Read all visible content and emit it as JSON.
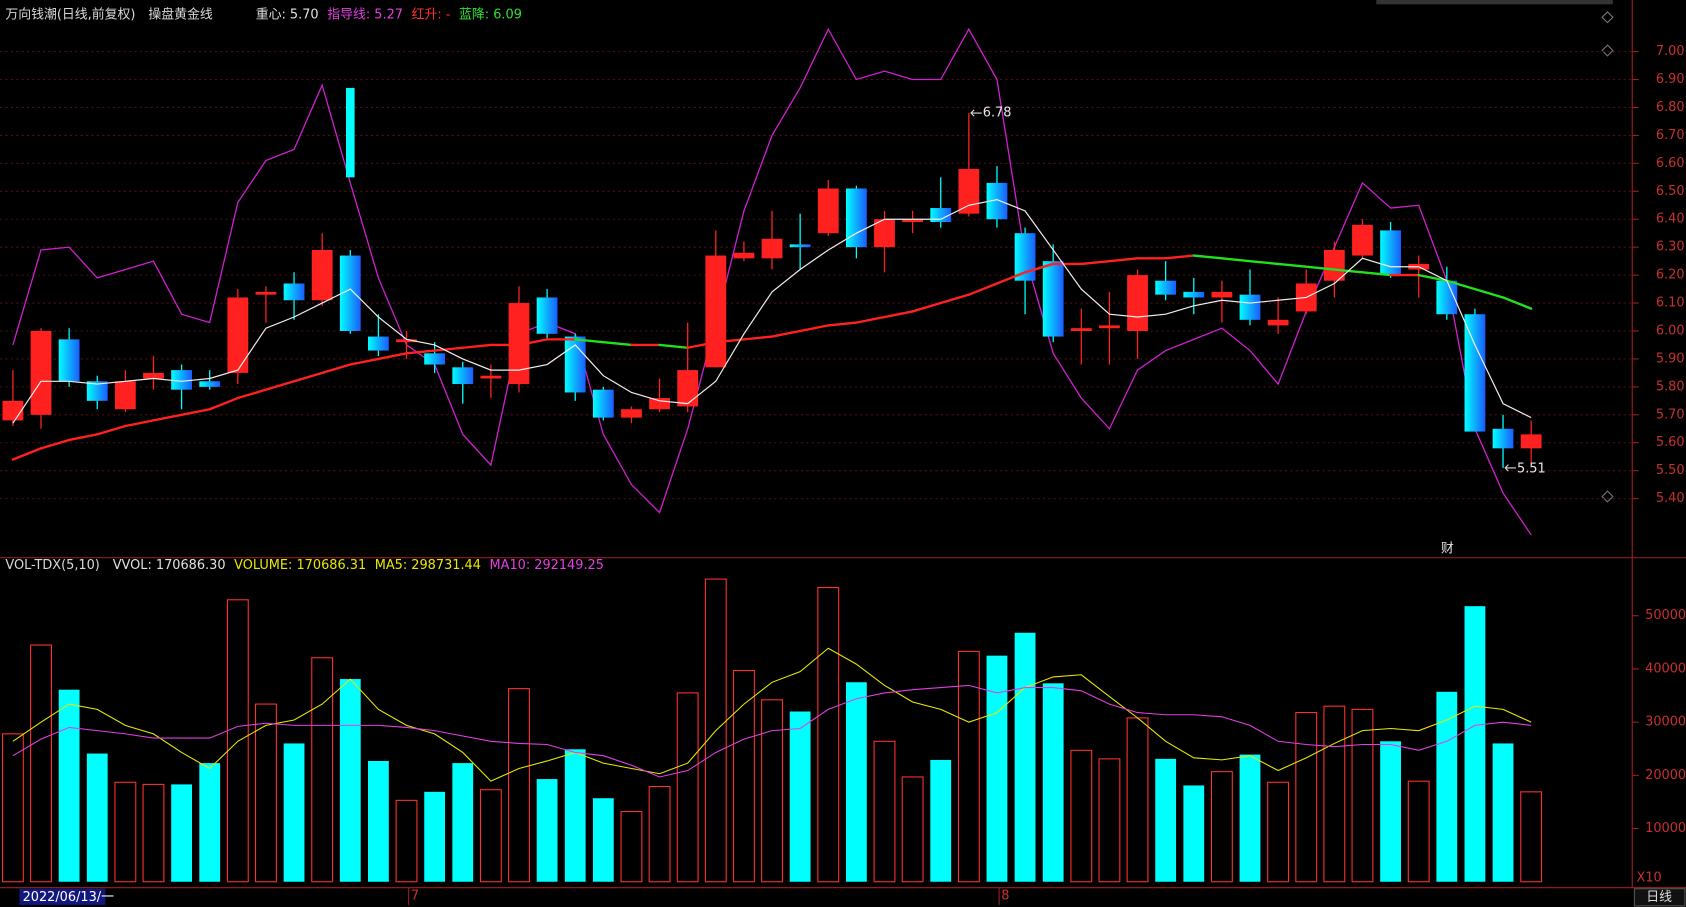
{
  "chart_data": [
    {
      "type": "candlestick",
      "title": "万向钱潮(日线,前复权)",
      "readouts": [
        {
          "text": "操盘黄金线",
          "color": "#d8d8d8"
        },
        {
          "text": "重心: 5.70",
          "color": "#e0e0e0"
        },
        {
          "text": "指导线: 5.27",
          "color": "#e040e0"
        },
        {
          "text": "红升: -",
          "color": "#ff3030"
        },
        {
          "text": "蓝降: 6.09",
          "color": "#30e030"
        }
      ],
      "categories": [
        "2022/06/13/一",
        null,
        null,
        null,
        null,
        null,
        null,
        null,
        null,
        null,
        null,
        null,
        null,
        null,
        "7",
        null,
        null,
        null,
        null,
        null,
        null,
        null,
        null,
        null,
        null,
        null,
        null,
        null,
        null,
        null,
        null,
        null,
        null,
        null,
        null,
        "8",
        null,
        null,
        null,
        null,
        null,
        null,
        null,
        null,
        null,
        null,
        null,
        null,
        null,
        null,
        null,
        null,
        null,
        null,
        null
      ],
      "open": [
        5.68,
        5.7,
        5.97,
        5.82,
        5.72,
        5.83,
        5.86,
        5.82,
        5.85,
        6.13,
        6.17,
        6.11,
        6.27,
        5.98,
        5.96,
        5.92,
        5.87,
        5.83,
        5.81,
        6.12,
        5.98,
        5.79,
        5.69,
        5.72,
        5.73,
        5.87,
        6.26,
        6.26,
        6.31,
        6.35,
        6.51,
        6.3,
        6.39,
        6.44,
        6.42,
        6.53,
        6.35,
        6.25,
        6.0,
        6.01,
        6.0,
        6.18,
        6.14,
        6.12,
        6.13,
        6.02,
        6.07,
        6.18,
        6.27,
        6.36,
        6.22,
        6.18,
        6.06,
        5.65,
        5.58
      ],
      "high": [
        5.86,
        6.01,
        6.01,
        5.84,
        5.86,
        5.91,
        5.88,
        5.86,
        6.15,
        6.16,
        6.21,
        6.35,
        6.29,
        6.06,
        6.0,
        5.96,
        5.89,
        5.88,
        6.16,
        6.15,
        5.99,
        5.8,
        5.73,
        5.83,
        6.03,
        6.36,
        6.32,
        6.43,
        6.42,
        6.54,
        6.52,
        6.43,
        6.43,
        6.55,
        6.78,
        6.59,
        6.37,
        6.31,
        6.08,
        6.14,
        6.22,
        6.25,
        6.19,
        6.18,
        6.22,
        6.12,
        6.22,
        6.32,
        6.4,
        6.39,
        6.27,
        6.23,
        6.08,
        5.7,
        5.68
      ],
      "low": [
        5.66,
        5.65,
        5.8,
        5.72,
        5.71,
        5.79,
        5.72,
        5.79,
        5.81,
        6.03,
        6.04,
        6.09,
        5.99,
        5.91,
        5.9,
        5.85,
        5.74,
        5.76,
        5.78,
        5.97,
        5.75,
        5.68,
        5.67,
        5.71,
        5.71,
        5.87,
        6.25,
        6.22,
        6.22,
        6.34,
        6.26,
        6.21,
        6.35,
        6.37,
        6.41,
        6.37,
        6.06,
        5.96,
        5.88,
        5.88,
        5.9,
        6.11,
        6.06,
        6.03,
        6.02,
        5.99,
        6.06,
        6.12,
        6.26,
        6.19,
        6.12,
        6.04,
        5.64,
        5.51,
        5.53
      ],
      "close": [
        5.75,
        6.0,
        5.82,
        5.75,
        5.82,
        5.85,
        5.79,
        5.8,
        6.12,
        6.14,
        6.11,
        6.29,
        6.0,
        5.93,
        5.97,
        5.88,
        5.81,
        5.84,
        6.1,
        5.99,
        5.78,
        5.69,
        5.72,
        5.76,
        5.86,
        6.27,
        6.28,
        6.33,
        6.3,
        6.51,
        6.3,
        6.4,
        6.4,
        6.39,
        6.58,
        6.4,
        6.18,
        5.98,
        6.01,
        6.02,
        6.2,
        6.13,
        6.12,
        6.14,
        6.04,
        6.04,
        6.17,
        6.29,
        6.38,
        6.2,
        6.24,
        6.06,
        5.64,
        5.58,
        5.63
      ],
      "up_color": "#ff2020",
      "down_colors": [
        "#00ffff",
        "#1a5cff"
      ],
      "signal": {
        "color": "#00ffff",
        "high": [
          null,
          null,
          null,
          null,
          null,
          null,
          null,
          null,
          null,
          null,
          null,
          null,
          6.87,
          null,
          null,
          null,
          null,
          null,
          null,
          null,
          null,
          null,
          null,
          null,
          null,
          null,
          null,
          null,
          null,
          null,
          null,
          null,
          null,
          null,
          null,
          null,
          null,
          null,
          null,
          null,
          null,
          null,
          null,
          null,
          null,
          null,
          null,
          null,
          null,
          null,
          null,
          null,
          null,
          null,
          null
        ],
        "low": [
          null,
          null,
          null,
          null,
          null,
          null,
          null,
          null,
          null,
          null,
          null,
          null,
          6.55,
          null,
          null,
          null,
          null,
          null,
          null,
          null,
          null,
          null,
          null,
          null,
          null,
          null,
          null,
          null,
          null,
          null,
          null,
          null,
          null,
          null,
          null,
          null,
          null,
          null,
          null,
          null,
          null,
          null,
          null,
          null,
          null,
          null,
          null,
          null,
          null,
          null,
          null,
          null,
          null,
          null,
          null
        ]
      },
      "short_line": {
        "color": "#f0f0f0",
        "values": [
          5.67,
          5.82,
          5.82,
          5.81,
          5.82,
          5.83,
          5.82,
          5.83,
          5.86,
          6.01,
          6.05,
          6.1,
          6.15,
          6.05,
          5.97,
          5.95,
          5.9,
          5.86,
          5.86,
          5.88,
          5.95,
          5.84,
          5.78,
          5.75,
          5.74,
          5.82,
          5.99,
          6.14,
          6.22,
          6.29,
          6.35,
          6.4,
          6.4,
          6.4,
          6.45,
          6.47,
          6.43,
          6.29,
          6.15,
          6.06,
          6.05,
          6.06,
          6.09,
          6.11,
          6.1,
          6.11,
          6.12,
          6.17,
          6.26,
          6.23,
          6.23,
          6.18,
          5.95,
          5.74,
          5.69
        ]
      },
      "trend_line": {
        "up_color": "#ff2020",
        "down_color": "#20e020",
        "values": [
          5.54,
          5.58,
          5.61,
          5.63,
          5.66,
          5.68,
          5.7,
          5.72,
          5.76,
          5.79,
          5.82,
          5.85,
          5.88,
          5.9,
          5.92,
          5.93,
          5.94,
          5.95,
          5.95,
          5.97,
          5.97,
          5.96,
          5.95,
          5.95,
          5.94,
          5.96,
          5.97,
          5.98,
          6.0,
          6.02,
          6.03,
          6.05,
          6.07,
          6.1,
          6.13,
          6.17,
          6.21,
          6.24,
          6.24,
          6.25,
          6.26,
          6.26,
          6.27,
          6.26,
          6.25,
          6.24,
          6.23,
          6.22,
          6.21,
          6.2,
          6.2,
          6.18,
          6.15,
          6.12,
          6.08
        ]
      },
      "guide_line": {
        "color": "#d020d0",
        "values": [
          5.95,
          6.29,
          6.3,
          6.19,
          6.22,
          6.25,
          6.06,
          6.03,
          6.46,
          6.61,
          6.65,
          6.88,
          6.53,
          6.19,
          5.95,
          5.88,
          5.63,
          5.52,
          5.99,
          6.03,
          5.99,
          5.63,
          5.45,
          5.35,
          5.65,
          6.03,
          6.43,
          6.7,
          6.87,
          7.08,
          6.9,
          6.93,
          6.9,
          6.9,
          7.08,
          6.9,
          6.27,
          5.92,
          5.76,
          5.65,
          5.86,
          5.93,
          5.97,
          6.01,
          5.93,
          5.81,
          6.07,
          6.3,
          6.53,
          6.44,
          6.45,
          6.18,
          5.65,
          5.42,
          5.27
        ]
      },
      "annotations": [
        {
          "value": 6.78
        },
        {
          "value": 5.51
        }
      ],
      "event_label": "财",
      "period_label": "日线",
      "ylim": [
        5.2,
        7.1
      ],
      "yticks": [
        {
          "value": 5.4,
          "label": "5.40"
        },
        {
          "value": 5.5,
          "label": "5.50"
        },
        {
          "value": 5.6,
          "label": "5.60"
        },
        {
          "value": 5.7,
          "label": "5.70"
        },
        {
          "value": 5.8,
          "label": "5.80"
        },
        {
          "value": 5.9,
          "label": "5.90"
        },
        {
          "value": 6.0,
          "label": "6.00"
        },
        {
          "value": 6.1,
          "label": "6.10"
        },
        {
          "value": 6.2,
          "label": "6.20"
        },
        {
          "value": 6.3,
          "label": "6.30"
        },
        {
          "value": 6.4,
          "label": "6.40"
        },
        {
          "value": 6.5,
          "label": "6.50"
        },
        {
          "value": 6.6,
          "label": "6.60"
        },
        {
          "value": 6.7,
          "label": "6.70"
        },
        {
          "value": 6.8,
          "label": "6.80"
        },
        {
          "value": 6.9,
          "label": "6.90"
        },
        {
          "value": 7.0,
          "label": "7.00"
        }
      ],
      "grid": true
    },
    {
      "type": "bar",
      "title": "VOL-TDX(5,10)",
      "readouts": [
        {
          "text": "VVOL: 170686.30",
          "color": "#e0e0e0"
        },
        {
          "text": "VOLUME: 170686.31",
          "color": "#e8e800"
        },
        {
          "text": "MA5: 298731.44",
          "color": "#e8e800"
        },
        {
          "text": "MA10: 292149.25",
          "color": "#e040e0"
        }
      ],
      "values": [
        27800,
        44500,
        36100,
        24100,
        18700,
        18300,
        18300,
        22300,
        53000,
        33400,
        26000,
        42100,
        38100,
        22700,
        15300,
        16900,
        22300,
        17300,
        36300,
        19300,
        24900,
        15700,
        13200,
        17900,
        35500,
        56900,
        39700,
        34200,
        32000,
        55300,
        37500,
        26400,
        19700,
        22900,
        43300,
        42500,
        46800,
        37300,
        24700,
        23100,
        30800,
        23100,
        18100,
        20700,
        23900,
        18700,
        31800,
        33000,
        32400,
        26400,
        18900,
        35700,
        51800,
        26000,
        16900
      ],
      "up_color": "#ff3030",
      "down_color": "#00ffff",
      "ma5": {
        "color": "#e8e800",
        "values": [
          26400,
          30000,
          33400,
          32400,
          29400,
          27800,
          24300,
          21300,
          26400,
          29400,
          30400,
          33400,
          38100,
          32400,
          29400,
          27800,
          24300,
          18900,
          21300,
          22700,
          24300,
          22300,
          21300,
          20300,
          22300,
          28400,
          33400,
          37500,
          39500,
          43900,
          40900,
          36900,
          33800,
          32400,
          30000,
          31800,
          36500,
          38500,
          38900,
          34800,
          30800,
          26400,
          23300,
          22900,
          23700,
          20900,
          23300,
          26000,
          28400,
          28800,
          28400,
          30400,
          33000,
          32400,
          30000
        ]
      },
      "ma10": {
        "color": "#e040e0",
        "values": [
          23700,
          26800,
          29000,
          28400,
          27800,
          27000,
          27000,
          27000,
          29200,
          29800,
          29400,
          29400,
          29400,
          29400,
          29000,
          28400,
          27400,
          26400,
          26000,
          25800,
          24300,
          23700,
          21900,
          19700,
          20900,
          24300,
          26800,
          28400,
          28800,
          32400,
          34400,
          35500,
          36100,
          36500,
          36900,
          35500,
          36500,
          36500,
          35900,
          33400,
          31800,
          31400,
          31400,
          31000,
          29400,
          26400,
          25800,
          25400,
          25800,
          25800,
          24700,
          26400,
          29400,
          30000,
          29400
        ]
      },
      "unit_label": "X10",
      "ylim": [
        0,
        60500
      ],
      "yticks": [
        10000,
        20000,
        30000,
        40000,
        50000
      ]
    }
  ]
}
